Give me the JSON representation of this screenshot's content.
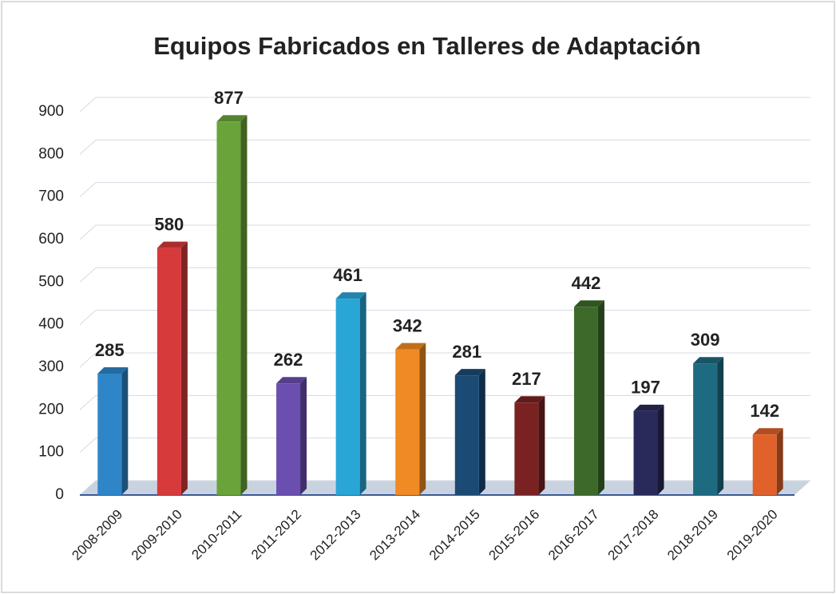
{
  "chart_data": {
    "type": "bar3d",
    "title": "Equipos Fabricados en Talleres de Adaptación",
    "categories": [
      "2008-2009",
      "2009-2010",
      "2010-2011",
      "2011-2012",
      "2012-2013",
      "2013-2014",
      "2014-2015",
      "2015-2016",
      "2016-2017",
      "2017-2018",
      "2018-2019",
      "2019-2020"
    ],
    "values": [
      285,
      580,
      877,
      262,
      461,
      342,
      281,
      217,
      442,
      197,
      309,
      142
    ],
    "colors": [
      "#2e86c8",
      "#d63a3a",
      "#6aa33a",
      "#6a4fb0",
      "#2aa6d6",
      "#f08a24",
      "#1b4a74",
      "#7a2222",
      "#3d6a2a",
      "#2a2a5a",
      "#1e6a80",
      "#e0622a"
    ],
    "ylim": [
      0,
      900
    ],
    "yticks": [
      0,
      100,
      200,
      300,
      400,
      500,
      600,
      700,
      800,
      900
    ],
    "grid": true
  }
}
